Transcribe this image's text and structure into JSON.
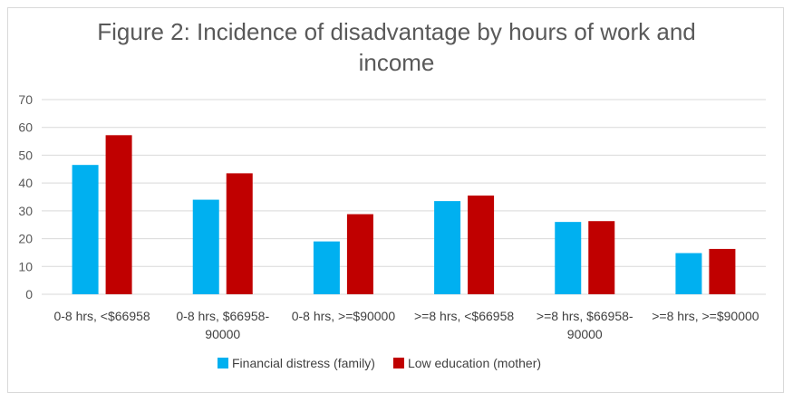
{
  "chart_data": {
    "type": "bar",
    "title_lines": [
      "Figure 2: Incidence of disadvantage by hours of work and",
      "income"
    ],
    "categories": [
      [
        "0-8 hrs, <$66958"
      ],
      [
        "0-8 hrs, $66958-",
        "90000"
      ],
      [
        "0-8 hrs, >=$90000"
      ],
      [
        ">=8 hrs, <$66958"
      ],
      [
        ">=8 hrs, $66958-",
        "90000"
      ],
      [
        ">=8 hrs, >=$90000"
      ]
    ],
    "series": [
      {
        "name": "Financial distress (family)",
        "color": "#00b0f0",
        "values": [
          46.5,
          34,
          19,
          33.5,
          26,
          14.8
        ]
      },
      {
        "name": "Low education (mother)",
        "color": "#c00000",
        "values": [
          57.2,
          43.5,
          28.8,
          35.5,
          26.3,
          16.3
        ]
      }
    ],
    "ylim": [
      0,
      70
    ],
    "yticks": [
      "0",
      "10",
      "20",
      "30",
      "40",
      "50",
      "60",
      "70"
    ],
    "grid": true,
    "legend_position": "bottom"
  }
}
